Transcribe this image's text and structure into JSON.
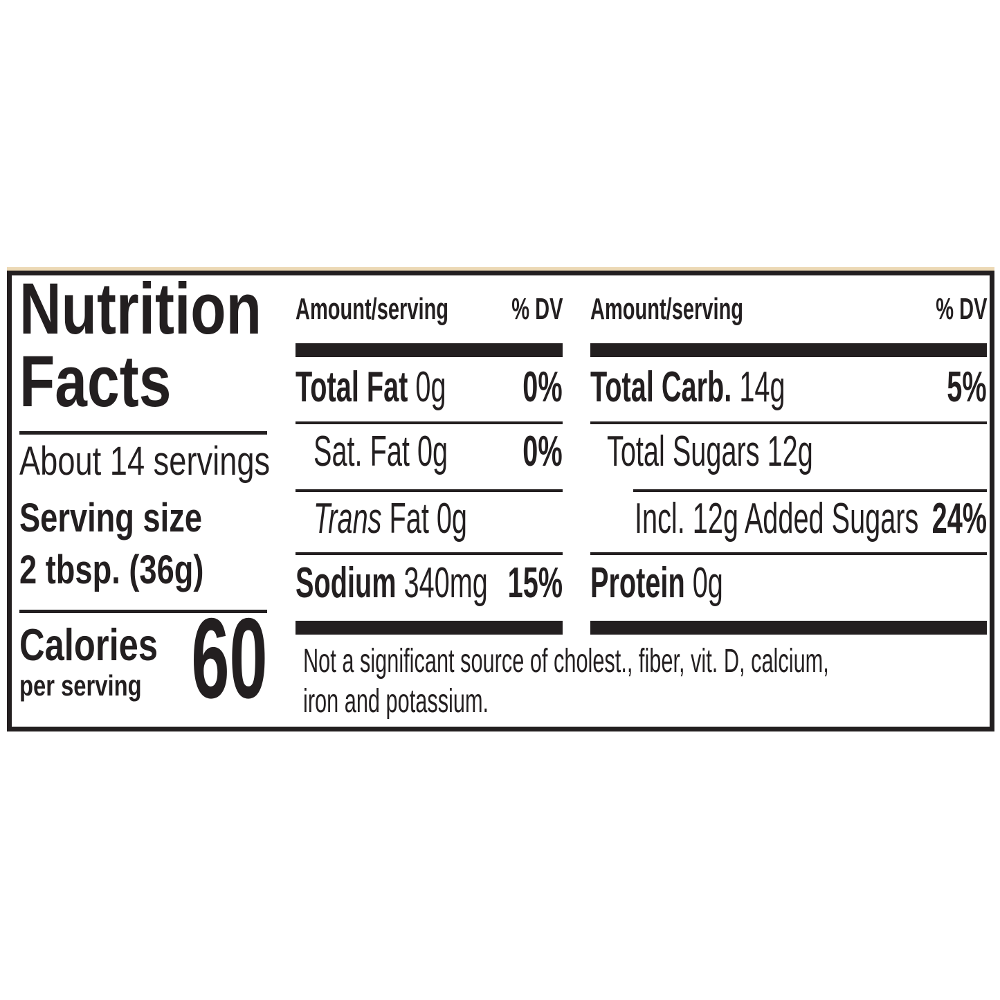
{
  "page": {
    "background": "#ffffff"
  },
  "label": {
    "ink_color": "#231f20",
    "top_strip_color": "#ecd9b5",
    "title": {
      "line1": "Nutrition",
      "line2": "Facts"
    },
    "servings_text": "About 14 servings",
    "serving_size": {
      "label": "Serving size",
      "value": "2 tbsp. (36g)"
    },
    "calories": {
      "label": "Calories",
      "sublabel": "per serving",
      "value": "60"
    },
    "col1": {
      "header": {
        "amount": "Amount/serving",
        "dv": "% DV"
      },
      "row1": {
        "bold": "Total Fat",
        "rest": " 0g",
        "dv": "0%"
      },
      "row2": {
        "rest": "Sat. Fat 0g",
        "dv": "0%"
      },
      "row3": {
        "italic": "Trans",
        "rest": " Fat 0g"
      },
      "row4": {
        "bold": "Sodium",
        "rest": " 340mg",
        "dv": "15%"
      }
    },
    "col2": {
      "header": {
        "amount": "Amount/serving",
        "dv": "% DV"
      },
      "row1": {
        "bold": "Total Carb.",
        "rest": " 14g",
        "dv": "5%"
      },
      "row2": {
        "rest": "Total Sugars 12g"
      },
      "row3": {
        "rest": "Incl. 12g Added Sugars",
        "dv": "24%"
      },
      "row4": {
        "bold": "Protein",
        "rest": " 0g"
      }
    },
    "footnote": {
      "line1": "Not a significant source of cholest., fiber, vit. D, calcium,",
      "line2": "iron and potassium."
    }
  }
}
